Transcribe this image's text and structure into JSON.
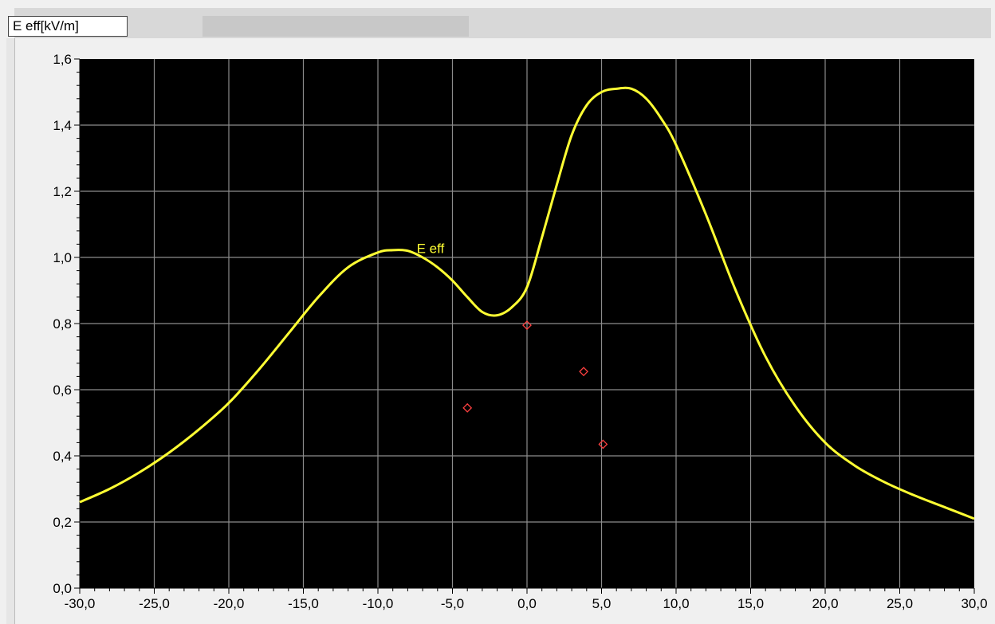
{
  "header": {
    "unit_label": "E eff[kV/m]"
  },
  "colors": {
    "plot_background": "#000000",
    "grid": "#8c8c8c",
    "series": "#ffff33",
    "measurement_marker": "#ff4040"
  },
  "chart_data": {
    "type": "line",
    "title": "",
    "xlabel": "",
    "ylabel": "E eff[kV/m]",
    "xlim": [
      -30,
      30
    ],
    "ylim": [
      0,
      1.6
    ],
    "grid": true,
    "x_ticks": [
      "-30,0",
      "-25,0",
      "-20,0",
      "-15,0",
      "-10,0",
      "-5,0",
      "0,0",
      "5,0",
      "10,0",
      "15,0",
      "20,0",
      "25,0",
      "30,0"
    ],
    "y_ticks": [
      "0,0",
      "0,2",
      "0,4",
      "0,6",
      "0,8",
      "1,0",
      "1,2",
      "1,4",
      "1,6"
    ],
    "series": [
      {
        "name": "E eff",
        "x": [
          -30,
          -28,
          -26,
          -24,
          -22,
          -20,
          -18,
          -16,
          -14,
          -12,
          -10,
          -9,
          -8,
          -7,
          -6,
          -5,
          -4,
          -3,
          -2,
          -1,
          0,
          1,
          2,
          3,
          4,
          5,
          6,
          7,
          8,
          9,
          10,
          12,
          14,
          16,
          18,
          20,
          22,
          24,
          26,
          28,
          30
        ],
        "y": [
          0.26,
          0.3,
          0.35,
          0.41,
          0.48,
          0.56,
          0.66,
          0.77,
          0.88,
          0.97,
          1.015,
          1.022,
          1.02,
          1.0,
          0.97,
          0.93,
          0.88,
          0.835,
          0.825,
          0.85,
          0.91,
          1.06,
          1.22,
          1.37,
          1.46,
          1.5,
          1.51,
          1.51,
          1.48,
          1.42,
          1.34,
          1.13,
          0.9,
          0.7,
          0.55,
          0.44,
          0.37,
          0.32,
          0.28,
          0.245,
          0.21
        ]
      },
      {
        "name": "",
        "type": "scatter",
        "x": [
          -4.0,
          0.0,
          3.8,
          5.1
        ],
        "y": [
          0.545,
          0.795,
          0.655,
          0.435
        ]
      }
    ]
  }
}
